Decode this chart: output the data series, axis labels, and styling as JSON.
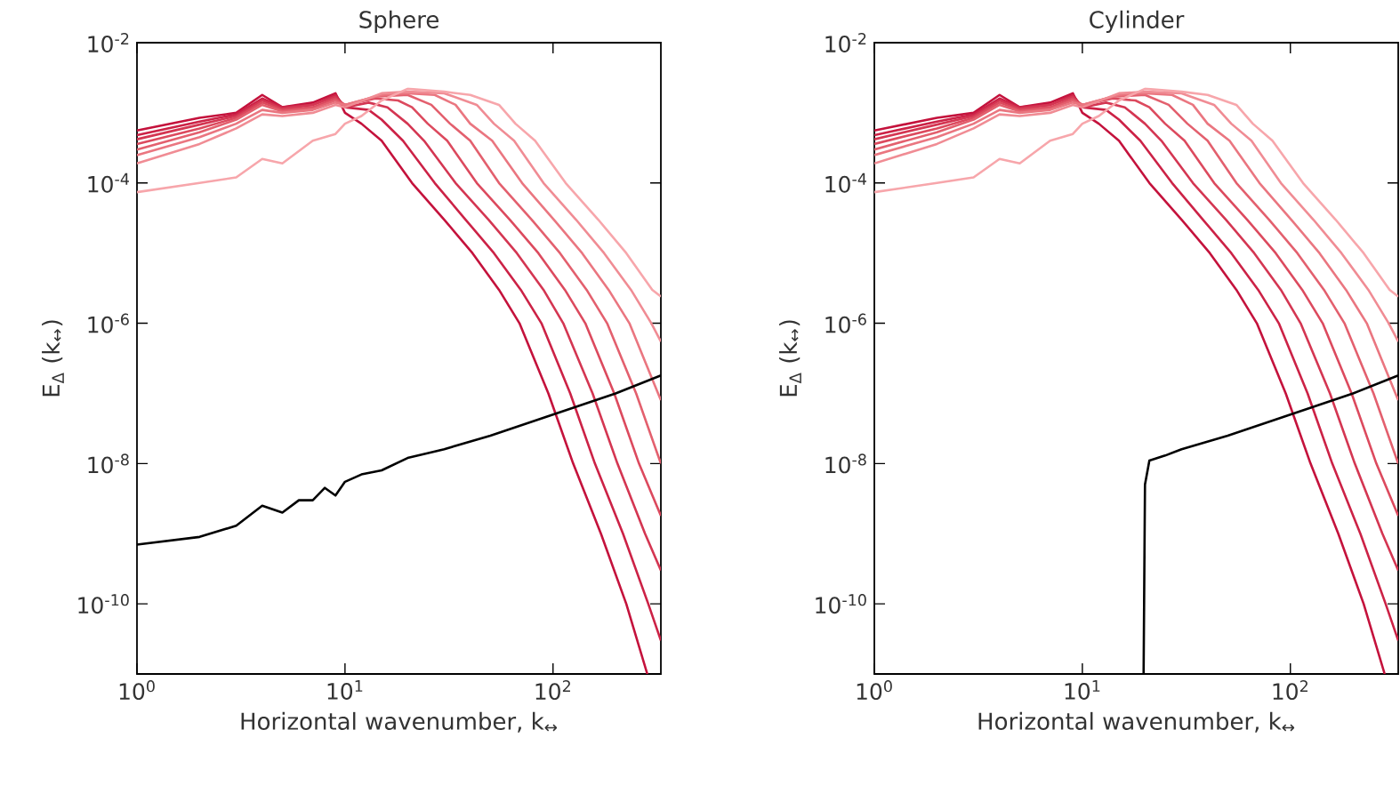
{
  "chart_data": [
    {
      "type": "line",
      "title": "Sphere",
      "xlabel": "Horizontal wavenumber, k$_{↔}$",
      "ylabel": "E$_{Δ}$ (k$_{↔}$)",
      "log": "xy",
      "xlim": [
        1,
        330
      ],
      "ylim": [
        1e-11,
        0.01
      ],
      "xticks": [
        {
          "value": 1,
          "label": "10$^{0}$"
        },
        {
          "value": 10,
          "label": "10$^{1}$"
        },
        {
          "value": 100,
          "label": "10$^{2}$"
        }
      ],
      "yticks": [
        {
          "value": 1e-10,
          "label": "10$^{-10}$"
        },
        {
          "value": 1e-08,
          "label": "10$^{-8}$"
        },
        {
          "value": 1e-06,
          "label": "10$^{-6}$"
        },
        {
          "value": 0.0001,
          "label": "10$^{-4}$"
        },
        {
          "value": 0.01,
          "label": "10$^{-2}$"
        }
      ],
      "series": [
        {
          "color": "#c4123c",
          "x": [
            1,
            2,
            3,
            4,
            5,
            7,
            9,
            10,
            12,
            15,
            21,
            30,
            41,
            55,
            69,
            95,
            125,
            170,
            225,
            284
          ],
          "values": [
            0.00056,
            0.00085,
            0.001,
            0.0018,
            0.0012,
            0.0014,
            0.0019,
            0.001,
            0.0007,
            0.0004,
            0.0001,
            3e-05,
            1e-05,
            3e-06,
            1e-06,
            1e-07,
            1e-08,
            1e-09,
            1e-10,
            1e-11
          ]
        },
        {
          "color": "#cc2246",
          "x": [
            1,
            2,
            3,
            4,
            5,
            7,
            9,
            10,
            13,
            15,
            19,
            27,
            38,
            52,
            70,
            88,
            121,
            159,
            217,
            287,
            330
          ],
          "values": [
            0.00048,
            0.00075,
            0.00095,
            0.0016,
            0.0012,
            0.0013,
            0.0018,
            0.0012,
            0.0011,
            0.0008,
            0.0004,
            0.0001,
            3e-05,
            1e-05,
            3e-06,
            1e-06,
            1e-07,
            1e-08,
            1e-09,
            1e-10,
            3e-11
          ]
        },
        {
          "color": "#d43652",
          "x": [
            1,
            2,
            3,
            4,
            5,
            7,
            9,
            10,
            13,
            16,
            20,
            24,
            34,
            49,
            67,
            90,
            112,
            155,
            204,
            277,
            330
          ],
          "values": [
            0.00042,
            0.00068,
            0.0009,
            0.0015,
            0.00115,
            0.0013,
            0.0017,
            0.0012,
            0.0014,
            0.0012,
            0.0007,
            0.0004,
            0.0001,
            3e-05,
            1e-05,
            3e-06,
            1e-06,
            1e-07,
            1e-08,
            1e-09,
            3e-10
          ]
        },
        {
          "color": "#dc4a5e",
          "x": [
            1,
            2,
            3,
            4,
            5,
            7,
            9,
            10,
            14,
            18,
            21,
            25,
            31,
            43,
            62,
            85,
            114,
            143,
            197,
            259,
            330
          ],
          "values": [
            0.00036,
            0.0006,
            0.00085,
            0.0014,
            0.0011,
            0.0012,
            0.0016,
            0.0013,
            0.0016,
            0.0015,
            0.0012,
            0.0007,
            0.0004,
            0.0001,
            3e-05,
            1e-05,
            3e-06,
            1e-06,
            1e-07,
            1e-08,
            1.8e-09
          ]
        },
        {
          "color": "#e3606e",
          "x": [
            1,
            2,
            3,
            4,
            5,
            7,
            9,
            10,
            14,
            20,
            26,
            32,
            40,
            55,
            79,
            108,
            145,
            182,
            251,
            330
          ],
          "values": [
            0.0003,
            0.00053,
            0.0008,
            0.0013,
            0.00105,
            0.00115,
            0.0015,
            0.0013,
            0.0017,
            0.0018,
            0.0013,
            0.0007,
            0.0004,
            0.0001,
            3e-05,
            1e-05,
            3e-06,
            1e-06,
            1e-07,
            1e-08
          ]
        },
        {
          "color": "#ea7680",
          "x": [
            1,
            2,
            3,
            4,
            5,
            7,
            9,
            10,
            15,
            20,
            27,
            34,
            40,
            51,
            71,
            101,
            138,
            185,
            233,
            320,
            330
          ],
          "values": [
            0.00025,
            0.00045,
            0.0007,
            0.0011,
            0.001,
            0.0011,
            0.0014,
            0.0013,
            0.0018,
            0.0019,
            0.0018,
            0.0013,
            0.0007,
            0.0004,
            0.0001,
            3e-05,
            1e-05,
            3e-06,
            1e-06,
            1e-07,
            8e-08
          ]
        },
        {
          "color": "#f08c94",
          "x": [
            1,
            2,
            3,
            4,
            5,
            7,
            9,
            10,
            15,
            20,
            30,
            43,
            52,
            65,
            90,
            129,
            176,
            237,
            297,
            330
          ],
          "values": [
            0.00019,
            0.00036,
            0.0006,
            0.00095,
            0.0009,
            0.001,
            0.0013,
            0.0012,
            0.0019,
            0.002,
            0.0019,
            0.0013,
            0.0007,
            0.0004,
            0.0001,
            3e-05,
            1e-05,
            3e-06,
            1e-06,
            5.5e-07
          ]
        },
        {
          "color": "#f7a6ab",
          "x": [
            1,
            2,
            3,
            4,
            5,
            7,
            9,
            10,
            12,
            15,
            20,
            30,
            40,
            55,
            66,
            82,
            115,
            165,
            225,
            300,
            330
          ],
          "values": [
            7.4e-05,
            0.0001,
            0.00012,
            0.00022,
            0.00019,
            0.0004,
            0.0005,
            0.0007,
            0.0009,
            0.0015,
            0.0022,
            0.002,
            0.0018,
            0.0013,
            0.0007,
            0.0004,
            0.0001,
            3e-05,
            1e-05,
            3e-06,
            2.4e-06
          ]
        },
        {
          "color": "#000000",
          "x": [
            1,
            2,
            3,
            4,
            5,
            6,
            7,
            8,
            9,
            10,
            12,
            15,
            20,
            30,
            50,
            100,
            200,
            330
          ],
          "values": [
            7e-10,
            9e-10,
            1.3e-09,
            2.5e-09,
            2e-09,
            3e-09,
            3e-09,
            4.5e-09,
            3.5e-09,
            5.5e-09,
            7e-09,
            8e-09,
            1.2e-08,
            1.6e-08,
            2.5e-08,
            5e-08,
            1e-07,
            1.8e-07
          ]
        }
      ]
    },
    {
      "type": "line",
      "title": "Cylinder",
      "xlabel": "Horizontal wavenumber, k$_{↔}$",
      "ylabel": "E$_{Δ}$ (k$_{↔}$)",
      "log": "xy",
      "xlim": [
        1,
        330
      ],
      "ylim": [
        1e-11,
        0.01
      ],
      "xticks": [
        {
          "value": 1,
          "label": "10$^{0}$"
        },
        {
          "value": 10,
          "label": "10$^{1}$"
        },
        {
          "value": 100,
          "label": "10$^{2}$"
        }
      ],
      "yticks": [
        {
          "value": 1e-10,
          "label": "10$^{-10}$"
        },
        {
          "value": 1e-08,
          "label": "10$^{-8}$"
        },
        {
          "value": 1e-06,
          "label": "10$^{-6}$"
        },
        {
          "value": 0.0001,
          "label": "10$^{-4}$"
        },
        {
          "value": 0.01,
          "label": "10$^{-2}$"
        }
      ],
      "series": [
        {
          "color": "#c4123c",
          "x": [
            1,
            2,
            3,
            4,
            5,
            7,
            9,
            10,
            12,
            15,
            21,
            30,
            41,
            55,
            69,
            95,
            125,
            170,
            225,
            284
          ],
          "values": [
            0.00056,
            0.00085,
            0.001,
            0.0018,
            0.0012,
            0.0014,
            0.0019,
            0.001,
            0.0007,
            0.0004,
            0.0001,
            3e-05,
            1e-05,
            3e-06,
            1e-06,
            1e-07,
            1e-08,
            1e-09,
            1e-10,
            1e-11
          ]
        },
        {
          "color": "#cc2246",
          "x": [
            1,
            2,
            3,
            4,
            5,
            7,
            9,
            10,
            13,
            15,
            19,
            27,
            38,
            52,
            70,
            88,
            121,
            159,
            217,
            287,
            330
          ],
          "values": [
            0.00048,
            0.00075,
            0.00095,
            0.0016,
            0.0012,
            0.0013,
            0.0018,
            0.0012,
            0.0011,
            0.0008,
            0.0004,
            0.0001,
            3e-05,
            1e-05,
            3e-06,
            1e-06,
            1e-07,
            1e-08,
            1e-09,
            1e-10,
            3e-11
          ]
        },
        {
          "color": "#d43652",
          "x": [
            1,
            2,
            3,
            4,
            5,
            7,
            9,
            10,
            13,
            16,
            20,
            24,
            34,
            49,
            67,
            90,
            112,
            155,
            204,
            277,
            330
          ],
          "values": [
            0.00042,
            0.00068,
            0.0009,
            0.0015,
            0.00115,
            0.0013,
            0.0017,
            0.0012,
            0.0014,
            0.0012,
            0.0007,
            0.0004,
            0.0001,
            3e-05,
            1e-05,
            3e-06,
            1e-06,
            1e-07,
            1e-08,
            1e-09,
            3e-10
          ]
        },
        {
          "color": "#dc4a5e",
          "x": [
            1,
            2,
            3,
            4,
            5,
            7,
            9,
            10,
            14,
            18,
            21,
            25,
            31,
            43,
            62,
            85,
            114,
            143,
            197,
            259,
            330
          ],
          "values": [
            0.00036,
            0.0006,
            0.00085,
            0.0014,
            0.0011,
            0.0012,
            0.0016,
            0.0013,
            0.0016,
            0.0015,
            0.0012,
            0.0007,
            0.0004,
            0.0001,
            3e-05,
            1e-05,
            3e-06,
            1e-06,
            1e-07,
            1e-08,
            1.8e-09
          ]
        },
        {
          "color": "#e3606e",
          "x": [
            1,
            2,
            3,
            4,
            5,
            7,
            9,
            10,
            14,
            20,
            26,
            32,
            40,
            55,
            79,
            108,
            145,
            182,
            251,
            330
          ],
          "values": [
            0.0003,
            0.00053,
            0.0008,
            0.0013,
            0.00105,
            0.00115,
            0.0015,
            0.0013,
            0.0017,
            0.0018,
            0.0013,
            0.0007,
            0.0004,
            0.0001,
            3e-05,
            1e-05,
            3e-06,
            1e-06,
            1e-07,
            1e-08
          ]
        },
        {
          "color": "#ea7680",
          "x": [
            1,
            2,
            3,
            4,
            5,
            7,
            9,
            10,
            15,
            20,
            27,
            34,
            40,
            51,
            71,
            101,
            138,
            185,
            233,
            320,
            330
          ],
          "values": [
            0.00025,
            0.00045,
            0.0007,
            0.0011,
            0.001,
            0.0011,
            0.0014,
            0.0013,
            0.0018,
            0.0019,
            0.0018,
            0.0013,
            0.0007,
            0.0004,
            0.0001,
            3e-05,
            1e-05,
            3e-06,
            1e-06,
            1e-07,
            8e-08
          ]
        },
        {
          "color": "#f08c94",
          "x": [
            1,
            2,
            3,
            4,
            5,
            7,
            9,
            10,
            15,
            20,
            30,
            43,
            52,
            65,
            90,
            129,
            176,
            237,
            297,
            330
          ],
          "values": [
            0.00019,
            0.00036,
            0.0006,
            0.00095,
            0.0009,
            0.001,
            0.0013,
            0.0012,
            0.0019,
            0.002,
            0.0019,
            0.0013,
            0.0007,
            0.0004,
            0.0001,
            3e-05,
            1e-05,
            3e-06,
            1e-06,
            5.5e-07
          ]
        },
        {
          "color": "#f7a6ab",
          "x": [
            1,
            2,
            3,
            4,
            5,
            7,
            9,
            10,
            12,
            15,
            20,
            30,
            40,
            55,
            66,
            82,
            115,
            165,
            225,
            300,
            330
          ],
          "values": [
            7.4e-05,
            0.0001,
            0.00012,
            0.00022,
            0.00019,
            0.0004,
            0.0005,
            0.0007,
            0.0009,
            0.0015,
            0.0022,
            0.002,
            0.0018,
            0.0013,
            0.0007,
            0.0004,
            0.0001,
            3e-05,
            1e-05,
            3e-06,
            2.4e-06
          ]
        },
        {
          "color": "#000000",
          "x": [
            19.7,
            20,
            21,
            25,
            30,
            50,
            100,
            200,
            330
          ],
          "values": [
            1e-11,
            5e-09,
            1.1e-08,
            1.3e-08,
            1.6e-08,
            2.5e-08,
            5e-08,
            1e-07,
            1.8e-07
          ]
        }
      ]
    }
  ]
}
